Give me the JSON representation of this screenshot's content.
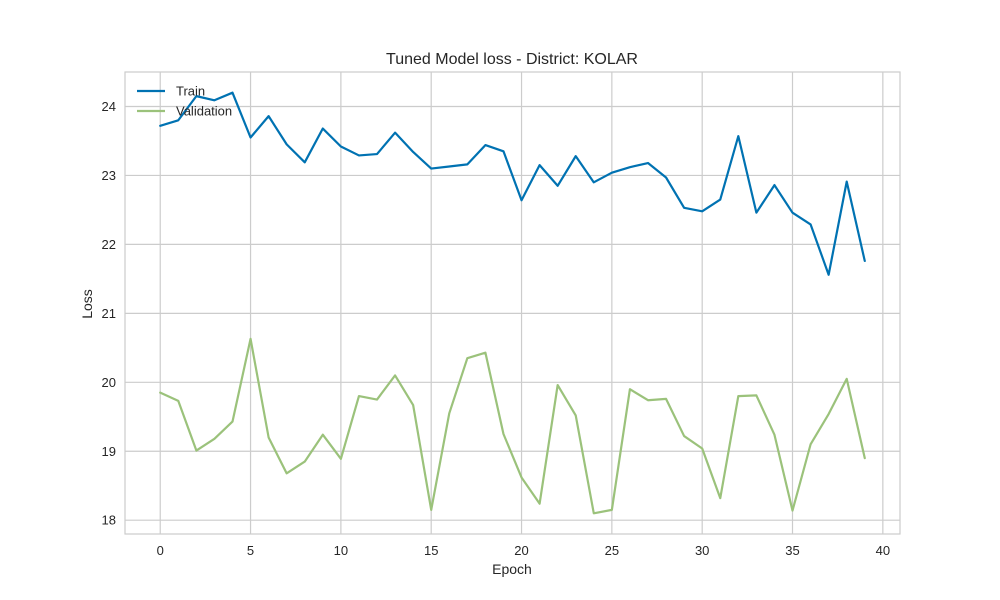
{
  "chart_data": {
    "type": "line",
    "title": "Tuned Model loss - District: KOLAR",
    "xlabel": "Epoch",
    "ylabel": "Loss",
    "xlim": [
      -1.95,
      40.95
    ],
    "ylim": [
      17.8,
      24.5
    ],
    "xticks": [
      0,
      5,
      10,
      15,
      20,
      25,
      30,
      35,
      40
    ],
    "yticks": [
      18,
      19,
      20,
      21,
      22,
      23,
      24
    ],
    "grid": true,
    "legend": "top-left",
    "x": [
      0,
      1,
      2,
      3,
      4,
      5,
      6,
      7,
      8,
      9,
      10,
      11,
      12,
      13,
      14,
      15,
      16,
      17,
      18,
      19,
      20,
      21,
      22,
      23,
      24,
      25,
      26,
      27,
      28,
      29,
      30,
      31,
      32,
      33,
      34,
      35,
      36,
      37,
      38,
      39
    ],
    "series": [
      {
        "name": "Train",
        "color": "#0072B2",
        "values": [
          23.72,
          23.8,
          24.15,
          24.09,
          24.2,
          23.55,
          23.86,
          23.45,
          23.19,
          23.68,
          23.42,
          23.29,
          23.31,
          23.62,
          23.34,
          23.1,
          23.13,
          23.16,
          23.44,
          23.35,
          22.64,
          23.15,
          22.85,
          23.28,
          22.9,
          23.04,
          23.12,
          23.18,
          22.97,
          22.53,
          22.48,
          22.65,
          23.57,
          22.46,
          22.86,
          22.46,
          22.29,
          21.56,
          22.91,
          21.76
        ]
      },
      {
        "name": "Validation",
        "color": "#9BC27B",
        "values": [
          19.85,
          19.73,
          19.01,
          19.18,
          19.43,
          20.63,
          19.2,
          18.68,
          18.85,
          19.24,
          18.89,
          19.8,
          19.75,
          20.1,
          19.67,
          18.15,
          19.55,
          20.35,
          20.43,
          19.25,
          18.62,
          18.24,
          19.96,
          19.52,
          18.1,
          18.15,
          19.9,
          19.74,
          19.76,
          19.22,
          19.04,
          18.32,
          19.8,
          19.81,
          19.24,
          18.14,
          19.1,
          19.54,
          20.05,
          18.9
        ]
      }
    ]
  }
}
